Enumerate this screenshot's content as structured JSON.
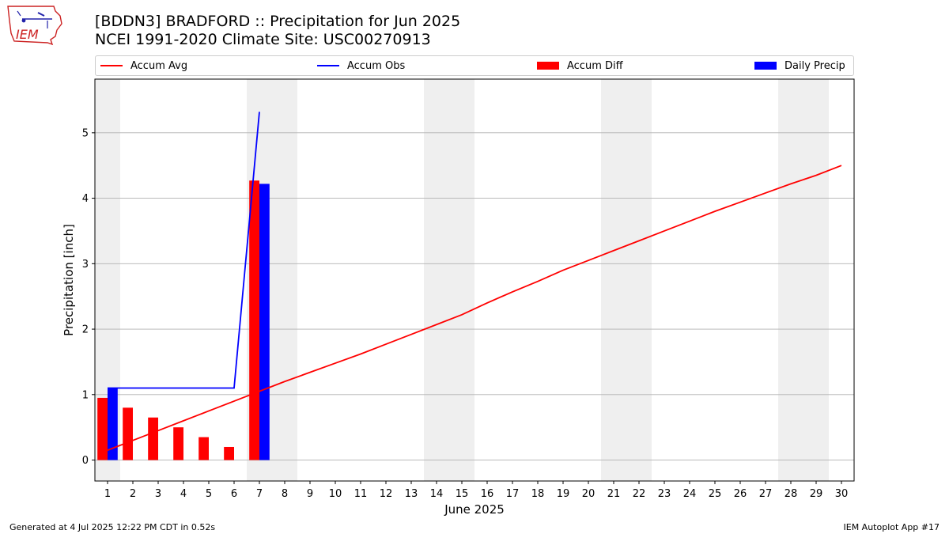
{
  "header": {
    "title_line1": "[BDDN3] BRADFORD :: Precipitation for Jun 2025",
    "title_line2": "NCEI 1991-2020 Climate Site: USC00270913"
  },
  "logo": {
    "text": "IEM"
  },
  "footer": {
    "left": "Generated at 4 Jul 2025 12:22 PM CDT in 0.52s",
    "right": "IEM Autoplot App #17"
  },
  "colors": {
    "accum_avg": "#ff0000",
    "accum_obs": "#0000ff",
    "accum_diff": "#ff0000",
    "daily_precip": "#0000ff",
    "weekend_band": "#efefef",
    "grid": "#b0b0b0"
  },
  "chart_data": {
    "type": "bar",
    "xlabel": "June 2025",
    "ylabel": "Precipitation [inch]",
    "xlim": [
      0.5,
      30.5
    ],
    "ylim": [
      -0.32,
      5.82
    ],
    "x_ticks": [
      1,
      2,
      3,
      4,
      5,
      6,
      7,
      8,
      9,
      10,
      11,
      12,
      13,
      14,
      15,
      16,
      17,
      18,
      19,
      20,
      21,
      22,
      23,
      24,
      25,
      26,
      27,
      28,
      29,
      30
    ],
    "y_ticks": [
      0,
      1,
      2,
      3,
      4,
      5
    ],
    "grid": "y",
    "legend_position": "top",
    "weekend_days": [
      1,
      7,
      8,
      14,
      15,
      21,
      22,
      28,
      29
    ],
    "series": [
      {
        "name": "Accum Avg",
        "kind": "line",
        "x": [
          1,
          2,
          3,
          4,
          5,
          6,
          7,
          8,
          9,
          10,
          11,
          12,
          13,
          14,
          15,
          16,
          17,
          18,
          19,
          20,
          21,
          22,
          23,
          24,
          25,
          26,
          27,
          28,
          29,
          30
        ],
        "values": [
          0.15,
          0.3,
          0.45,
          0.6,
          0.75,
          0.9,
          1.05,
          1.2,
          1.34,
          1.48,
          1.62,
          1.77,
          1.92,
          2.07,
          2.22,
          2.4,
          2.57,
          2.73,
          2.9,
          3.05,
          3.2,
          3.35,
          3.5,
          3.65,
          3.8,
          3.94,
          4.08,
          4.22,
          4.35,
          4.5
        ]
      },
      {
        "name": "Accum Obs",
        "kind": "line",
        "x": [
          1,
          2,
          3,
          4,
          5,
          6,
          7
        ],
        "values": [
          1.1,
          1.1,
          1.1,
          1.1,
          1.1,
          1.1,
          5.32
        ]
      },
      {
        "name": "Accum Diff",
        "kind": "bar",
        "x": [
          1,
          2,
          3,
          4,
          5,
          6,
          7
        ],
        "values": [
          0.95,
          0.8,
          0.65,
          0.5,
          0.35,
          0.2,
          4.27
        ]
      },
      {
        "name": "Daily Precip",
        "kind": "bar",
        "x": [
          1,
          7
        ],
        "values": [
          1.1,
          4.22
        ]
      }
    ]
  }
}
